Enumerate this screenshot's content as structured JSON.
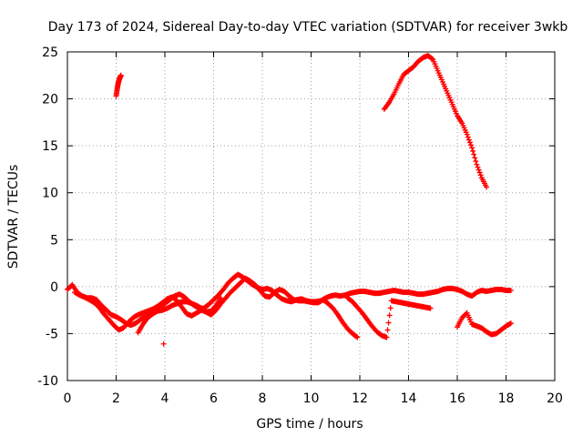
{
  "chart_data": {
    "type": "scatter",
    "title": "Day 173 of 2024, Sidereal Day-to-day VTEC variation (SDTVAR) for receiver 3wkb",
    "xlabel": "GPS time / hours",
    "ylabel": "SDTVAR / TECUs",
    "xlim": [
      0,
      20
    ],
    "ylim": [
      -10,
      25
    ],
    "xticks": [
      "0",
      "2",
      "4",
      "6",
      "8",
      "10",
      "12",
      "14",
      "16",
      "18",
      "20"
    ],
    "yticks": [
      "-10",
      "-5",
      "0",
      "5",
      "10",
      "15",
      "20",
      "25"
    ],
    "grid": true,
    "marker": "+",
    "color": "#ff0000",
    "series": [
      {
        "name": "seg-a",
        "x": [
          0.0,
          0.2,
          0.4,
          0.6,
          0.8,
          1.0,
          1.2,
          1.4,
          1.6,
          1.8,
          2.0,
          2.2,
          2.4,
          2.6,
          2.8,
          3.0,
          3.2,
          3.4,
          3.6,
          3.8,
          4.0,
          4.2,
          4.4,
          4.6,
          4.8,
          5.0,
          5.2,
          5.4,
          5.6,
          5.8,
          6.0,
          6.2,
          6.4,
          6.6,
          6.8,
          7.0,
          7.2,
          7.4,
          7.6,
          7.8,
          8.0,
          8.2,
          8.4,
          8.6,
          8.8,
          9.0,
          9.2,
          9.4,
          9.6,
          9.8,
          10.0,
          10.2,
          10.4,
          10.6,
          10.8,
          11.0,
          11.2,
          11.4,
          11.6,
          11.8,
          12.0,
          12.2,
          12.4,
          12.6,
          12.8,
          13.0,
          13.2,
          13.4,
          13.6,
          13.8,
          14.0,
          14.2,
          14.4,
          14.6,
          14.8,
          15.0,
          15.2,
          15.4,
          15.6,
          15.8,
          16.0,
          16.2,
          16.4,
          16.6,
          16.8,
          17.0,
          17.2,
          17.4,
          17.6,
          17.8,
          18.0,
          18.2
        ],
        "y": [
          -0.3,
          0.2,
          -0.6,
          -1.0,
          -1.2,
          -1.2,
          -1.4,
          -2.0,
          -2.5,
          -3.0,
          -3.2,
          -3.5,
          -3.9,
          -4.1,
          -3.9,
          -3.5,
          -3.2,
          -2.8,
          -2.5,
          -2.2,
          -1.8,
          -1.4,
          -1.0,
          -0.8,
          -1.1,
          -1.6,
          -2.0,
          -2.3,
          -2.3,
          -1.9,
          -1.4,
          -0.9,
          -0.3,
          0.4,
          0.9,
          1.3,
          1.0,
          0.6,
          0.2,
          -0.1,
          -0.3,
          -0.2,
          -0.4,
          -0.9,
          -1.3,
          -1.5,
          -1.6,
          -1.4,
          -1.3,
          -1.5,
          -1.6,
          -1.6,
          -1.5,
          -1.2,
          -1.0,
          -0.9,
          -1.0,
          -0.9,
          -0.7,
          -0.6,
          -0.5,
          -0.5,
          -0.6,
          -0.7,
          -0.7,
          -0.6,
          -0.5,
          -0.4,
          -0.5,
          -0.6,
          -0.6,
          -0.7,
          -0.8,
          -0.8,
          -0.7,
          -0.6,
          -0.5,
          -0.3,
          -0.2,
          -0.2,
          -0.3,
          -0.5,
          -0.8,
          -1.0,
          -0.6,
          -0.4,
          -0.5,
          -0.4,
          -0.3,
          -0.3,
          -0.4,
          -0.4
        ]
      },
      {
        "name": "seg-b",
        "x": [
          0.3,
          0.5,
          0.7,
          0.9,
          1.1,
          1.3,
          1.5,
          1.7,
          1.9,
          2.1,
          2.3,
          2.5,
          2.7,
          2.9,
          3.1,
          3.3,
          3.5,
          3.7,
          3.9,
          4.1,
          4.3,
          4.5,
          4.7,
          4.9,
          5.1,
          5.3,
          5.5,
          5.7,
          5.9,
          6.1,
          6.3,
          6.5,
          6.7,
          6.9,
          7.1,
          7.3,
          7.5,
          7.7,
          7.9,
          8.1,
          8.3,
          8.5,
          8.7,
          8.9,
          9.1,
          9.3,
          9.5,
          9.7,
          9.9,
          10.1,
          10.3,
          10.5,
          10.7,
          10.9,
          11.1,
          11.3,
          11.5,
          11.7,
          11.9
        ],
        "y": [
          -0.6,
          -0.9,
          -1.1,
          -1.4,
          -1.7,
          -2.2,
          -2.9,
          -3.5,
          -4.1,
          -4.6,
          -4.4,
          -3.8,
          -3.3,
          -3.0,
          -2.8,
          -2.6,
          -2.4,
          -2.1,
          -1.7,
          -1.3,
          -1.1,
          -1.5,
          -2.2,
          -2.9,
          -3.1,
          -2.8,
          -2.5,
          -2.7,
          -3.0,
          -2.5,
          -1.8,
          -1.2,
          -0.6,
          -0.1,
          0.4,
          0.9,
          0.6,
          0.2,
          -0.4,
          -1.0,
          -1.1,
          -0.6,
          -0.3,
          -0.5,
          -1.0,
          -1.4,
          -1.5,
          -1.5,
          -1.6,
          -1.7,
          -1.7,
          -1.4,
          -1.8,
          -2.3,
          -3.0,
          -3.8,
          -4.5,
          -5.0,
          -5.4
        ]
      },
      {
        "name": "seg-c",
        "x": [
          2.9,
          3.1,
          3.3,
          3.5,
          3.7,
          3.9,
          4.1,
          4.3,
          4.5,
          4.7,
          4.9,
          5.1,
          5.3,
          5.5,
          5.7,
          5.9,
          6.1,
          6.3
        ],
        "y": [
          -4.9,
          -4.0,
          -3.3,
          -2.9,
          -2.6,
          -2.5,
          -2.3,
          -2.0,
          -1.8,
          -1.6,
          -1.6,
          -1.8,
          -2.0,
          -2.3,
          -2.7,
          -2.6,
          -2.0,
          -1.2
        ]
      },
      {
        "name": "seg-d",
        "x": [
          11.5,
          11.7,
          11.9,
          12.1,
          12.3,
          12.5,
          12.7,
          12.9,
          13.1,
          13.3,
          13.5,
          13.7,
          13.9,
          14.1,
          14.3,
          14.5,
          14.7,
          14.9
        ],
        "y": [
          -1.2,
          -1.6,
          -2.2,
          -2.8,
          -3.5,
          -4.2,
          -4.8,
          -5.2,
          -5.4,
          -1.5,
          -1.6,
          -1.7,
          -1.8,
          -1.9,
          -2.0,
          -2.1,
          -2.2,
          -2.3
        ]
      },
      {
        "name": "seg-e",
        "x": [
          16.0,
          16.2,
          16.4,
          16.6,
          16.8,
          17.0,
          17.2,
          17.4,
          17.6,
          17.8,
          18.0,
          18.2
        ],
        "y": [
          -4.3,
          -3.3,
          -2.8,
          -4.0,
          -4.2,
          -4.4,
          -4.8,
          -5.1,
          -5.0,
          -4.6,
          -4.2,
          -3.9
        ]
      },
      {
        "name": "seg-f",
        "x": [
          2.0,
          2.04,
          2.08,
          2.12,
          2.16,
          2.2
        ],
        "y": [
          20.3,
          21.0,
          21.6,
          22.0,
          22.3,
          22.5
        ]
      },
      {
        "name": "seg-g",
        "x": [
          13.0,
          13.2,
          13.4,
          13.6,
          13.8,
          14.0,
          14.2,
          14.4,
          14.6,
          14.8,
          15.0,
          15.2,
          15.4,
          15.6,
          15.8,
          16.0,
          16.2,
          16.4,
          16.6,
          16.8,
          17.0,
          17.2
        ],
        "y": [
          18.9,
          19.6,
          20.5,
          21.6,
          22.6,
          23.0,
          23.4,
          24.0,
          24.4,
          24.6,
          24.2,
          23.0,
          21.8,
          20.6,
          19.4,
          18.2,
          17.4,
          16.2,
          14.8,
          13.0,
          11.6,
          10.6
        ]
      },
      {
        "name": "seg-h",
        "x": [
          3.95
        ],
        "y": [
          -6.1
        ]
      }
    ]
  }
}
